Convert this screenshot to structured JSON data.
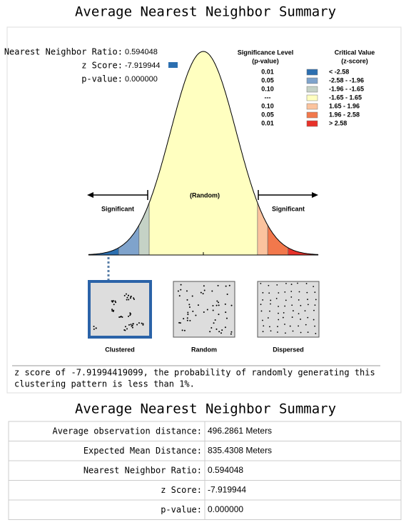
{
  "header": {
    "title": "Average Nearest Neighbor Summary"
  },
  "graphic": {
    "stats": [
      {
        "label": "Nearest Neighbor Ratio:",
        "value": "0.594048"
      },
      {
        "label": "z Score:",
        "value": "-7.919944"
      },
      {
        "label": "p-value:",
        "value": "0.000000"
      }
    ],
    "legend": {
      "headers": [
        [
          "Significance Level",
          "(p-value)"
        ],
        [
          "Critical Value",
          "(z-score)"
        ]
      ],
      "rows": [
        {
          "p": "0.01",
          "z": "< -2.58",
          "color": "#2c6fb0"
        },
        {
          "p": "0.05",
          "z": "-2.58 - -1.96",
          "color": "#7fa3cc"
        },
        {
          "p": "0.10",
          "z": "-1.96 - -1.65",
          "color": "#c5d2c6"
        },
        {
          "p": "---",
          "z": "-1.65 - 1.65",
          "color": "#ffffc0"
        },
        {
          "p": "0.10",
          "z": "1.65 - 1.96",
          "color": "#fbc39e"
        },
        {
          "p": "0.05",
          "z": "1.96 - 2.58",
          "color": "#f2784c"
        },
        {
          "p": "0.01",
          "z": "> 2.58",
          "color": "#e8322a"
        }
      ]
    },
    "labels": {
      "random": "(Random)",
      "left": "Significant",
      "right": "Significant"
    },
    "patterns": [
      "Clustered",
      "Random",
      "Dispersed"
    ]
  },
  "conclusion": [
    "z score of -7.91994419099, the probability of randomly generating this",
    "clustering pattern is less than 1%."
  ],
  "table": {
    "title": "Average Nearest Neighbor Summary",
    "rows": [
      [
        "Average observation distance:",
        "496.2861 Meters"
      ],
      [
        "Expected Mean Distance:",
        "835.4308 Meters"
      ],
      [
        "Nearest Neighbor Ratio:",
        "0.594048"
      ],
      [
        "z Score:",
        "-7.919944"
      ],
      [
        "p-value:",
        "0.000000"
      ]
    ]
  }
}
